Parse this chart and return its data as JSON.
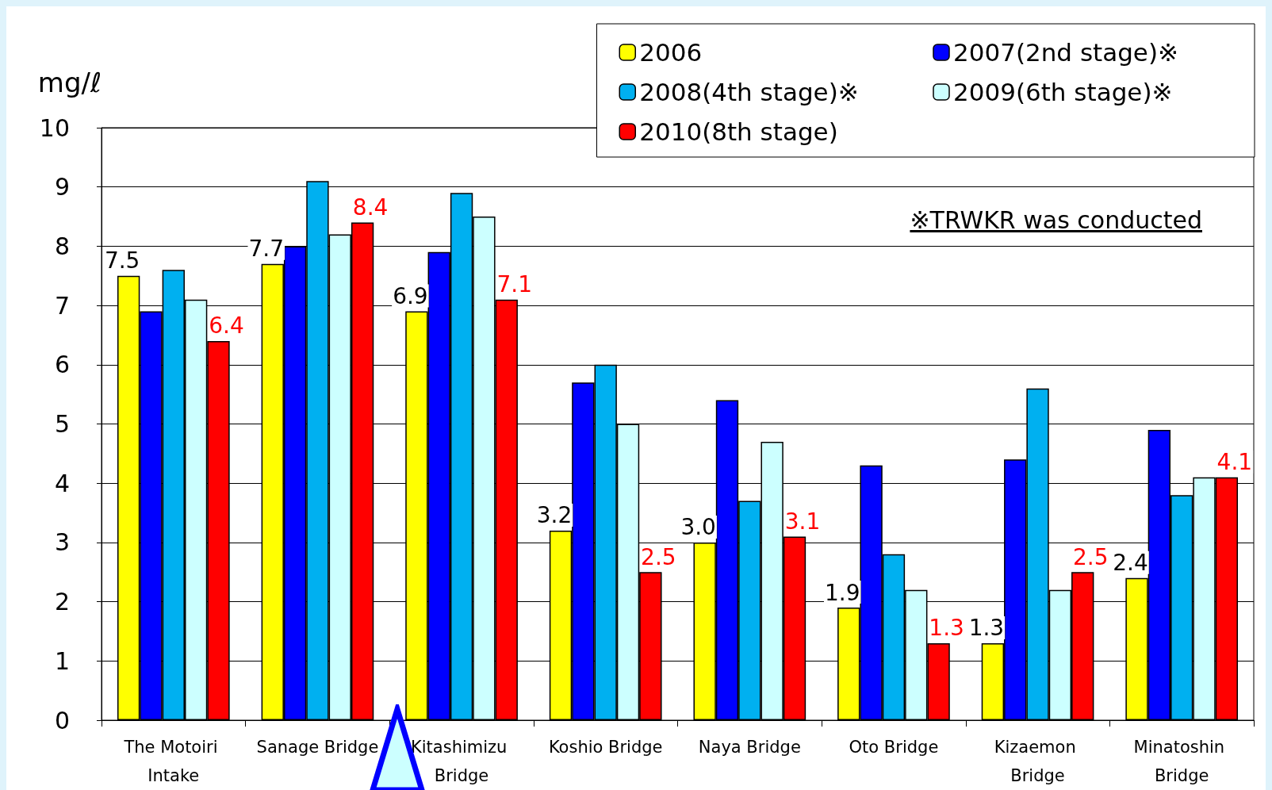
{
  "chart_data": {
    "type": "bar",
    "ylabel": "mg/ℓ",
    "categories": [
      "The Motoiri Intake",
      "Sanage Bridge",
      "Kitashimizu Bridge",
      "Koshio Bridge",
      "Naya Bridge",
      "Oto Bridge",
      "Kizaemon Bridge",
      "Minatoshin Bridge"
    ],
    "series": [
      {
        "name": "2006",
        "color": "#ffff00",
        "values": [
          7.5,
          7.7,
          6.9,
          3.2,
          3.0,
          1.9,
          1.3,
          2.4
        ],
        "value_labels": [
          "7.5",
          "7.7",
          "6.9",
          "3.2",
          "3.0",
          "1.9",
          "1.3",
          "2.4"
        ]
      },
      {
        "name": "2007(2nd stage)※",
        "color": "#0000ff",
        "values": [
          6.9,
          8.0,
          7.9,
          5.7,
          5.4,
          4.3,
          4.4,
          4.9
        ]
      },
      {
        "name": "2008(4th stage)※",
        "color": "#00b0f0",
        "values": [
          7.6,
          9.1,
          8.9,
          6.0,
          3.7,
          2.8,
          5.6,
          3.8
        ]
      },
      {
        "name": "2009(6th stage)※",
        "color": "#ccffff",
        "values": [
          7.1,
          8.2,
          8.5,
          5.0,
          4.7,
          2.2,
          2.2,
          4.1
        ]
      },
      {
        "name": "2010(8th stage)",
        "color": "#ff0000",
        "values": [
          6.4,
          8.4,
          7.1,
          2.5,
          3.1,
          1.3,
          2.5,
          4.1
        ],
        "value_labels": [
          "6.4",
          "8.4",
          "7.1",
          "2.5",
          "3.1",
          "1.3",
          "2.5",
          "4.1"
        ]
      }
    ],
    "ylim": [
      0,
      10
    ],
    "yticks": [
      0,
      1,
      2,
      3,
      4,
      5,
      6,
      7,
      8,
      9,
      10
    ],
    "grid": "y",
    "legend": "top right",
    "annotations": [
      "※TRWKR was conducted"
    ]
  }
}
